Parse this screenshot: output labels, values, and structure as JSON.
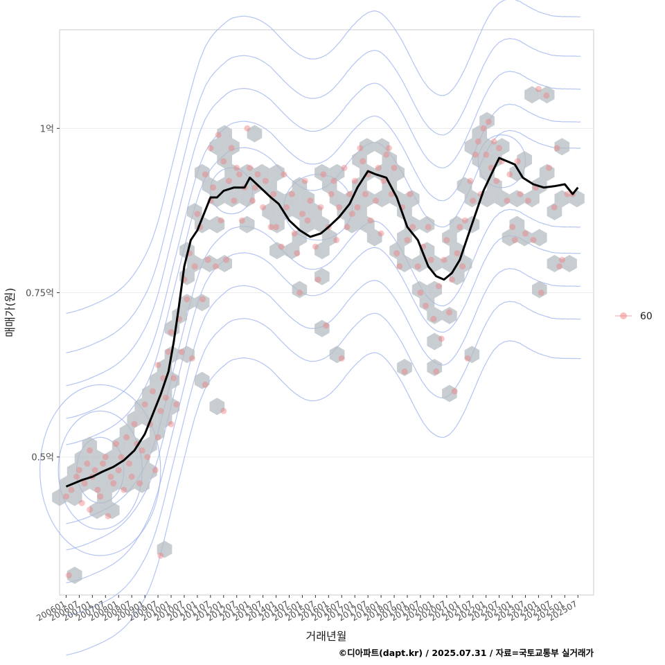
{
  "chart_data": {
    "type": "scatter",
    "title": "",
    "xlabel": "거래년월",
    "ylabel": "매매가(원)",
    "caption": "©디아파트(dapt.kr) / 2025.07.31 / 자료=국토교통부 실거래가",
    "y_unit": "억원",
    "ylim": [
      0.29,
      1.15
    ],
    "xlim": [
      2005.75,
      2026.1
    ],
    "y_ticks": [
      {
        "value": 0.5,
        "label": "0.5억"
      },
      {
        "value": 0.75,
        "label": "0.75억"
      },
      {
        "value": 1.0,
        "label": "1억"
      }
    ],
    "x_ticks": [
      "200601",
      "200607",
      "200701",
      "200707",
      "200801",
      "200807",
      "200901",
      "200907",
      "201001",
      "201007",
      "201101",
      "201107",
      "201201",
      "201207",
      "201301",
      "201307",
      "201401",
      "201407",
      "201501",
      "201507",
      "201601",
      "201607",
      "201701",
      "201707",
      "201801",
      "201807",
      "201901",
      "201907",
      "202001",
      "202007",
      "202101",
      "202107",
      "202201",
      "202207",
      "202301",
      "202307",
      "202401",
      "202407",
      "202501",
      "202507"
    ],
    "legend": {
      "position": "right",
      "entries": [
        {
          "label": "60",
          "color": "#f08080"
        }
      ]
    },
    "colors": {
      "points": "#f08080",
      "hex": "#b4bcc2",
      "contour": "#9bb0ee",
      "trend": "#000000",
      "panel_border": "#cccccc",
      "grid": "#ebebeb"
    },
    "trend_line": {
      "name": "moving average",
      "x": [
        2006.0,
        2006.3,
        2006.6,
        2007.0,
        2007.4,
        2007.8,
        2008.2,
        2008.6,
        2009.0,
        2009.3,
        2009.6,
        2009.9,
        2010.1,
        2010.3,
        2010.5,
        2010.75,
        2011.0,
        2011.25,
        2011.5,
        2011.75,
        2012.0,
        2012.4,
        2012.8,
        2013.0,
        2013.4,
        2013.8,
        2014.1,
        2014.5,
        2014.9,
        2015.3,
        2015.7,
        2016.0,
        2016.4,
        2016.8,
        2017.1,
        2017.5,
        2017.8,
        2018.2,
        2018.6,
        2019.0,
        2019.4,
        2019.8,
        2020.1,
        2020.4,
        2020.7,
        2021.0,
        2021.3,
        2021.6,
        2021.9,
        2022.2,
        2022.5,
        2022.8,
        2023.1,
        2023.4,
        2023.8,
        2024.2,
        2024.6,
        2025.0,
        2025.3,
        2025.5
      ],
      "y": [
        0.455,
        0.46,
        0.465,
        0.47,
        0.478,
        0.485,
        0.495,
        0.51,
        0.535,
        0.565,
        0.595,
        0.63,
        0.675,
        0.73,
        0.79,
        0.83,
        0.845,
        0.87,
        0.895,
        0.895,
        0.905,
        0.91,
        0.91,
        0.925,
        0.91,
        0.895,
        0.885,
        0.86,
        0.845,
        0.835,
        0.84,
        0.85,
        0.865,
        0.885,
        0.91,
        0.935,
        0.93,
        0.925,
        0.895,
        0.85,
        0.83,
        0.79,
        0.775,
        0.77,
        0.78,
        0.8,
        0.835,
        0.87,
        0.905,
        0.93,
        0.955,
        0.95,
        0.945,
        0.925,
        0.915,
        0.91,
        0.912,
        0.915,
        0.9,
        0.91
      ]
    },
    "series": [
      {
        "name": "60",
        "points": [
          [
            2006.0,
            0.44
          ],
          [
            2006.1,
            0.32
          ],
          [
            2006.2,
            0.45
          ],
          [
            2006.4,
            0.47
          ],
          [
            2006.5,
            0.48
          ],
          [
            2006.6,
            0.43
          ],
          [
            2006.7,
            0.46
          ],
          [
            2006.8,
            0.49
          ],
          [
            2006.9,
            0.51
          ],
          [
            2006.9,
            0.42
          ],
          [
            2007.0,
            0.47
          ],
          [
            2007.1,
            0.48
          ],
          [
            2007.2,
            0.45
          ],
          [
            2007.3,
            0.44
          ],
          [
            2007.4,
            0.49
          ],
          [
            2007.5,
            0.5
          ],
          [
            2007.6,
            0.41
          ],
          [
            2007.7,
            0.47
          ],
          [
            2007.8,
            0.46
          ],
          [
            2007.9,
            0.52
          ],
          [
            2008.0,
            0.48
          ],
          [
            2008.1,
            0.5
          ],
          [
            2008.2,
            0.45
          ],
          [
            2008.3,
            0.53
          ],
          [
            2008.4,
            0.49
          ],
          [
            2008.5,
            0.47
          ],
          [
            2008.6,
            0.55
          ],
          [
            2008.7,
            0.52
          ],
          [
            2008.8,
            0.46
          ],
          [
            2008.9,
            0.51
          ],
          [
            2009.0,
            0.58
          ],
          [
            2009.1,
            0.5
          ],
          [
            2009.2,
            0.55
          ],
          [
            2009.3,
            0.6
          ],
          [
            2009.4,
            0.48
          ],
          [
            2009.5,
            0.53
          ],
          [
            2009.5,
            0.64
          ],
          [
            2009.6,
            0.57
          ],
          [
            2009.6,
            0.35
          ],
          [
            2009.7,
            0.62
          ],
          [
            2009.8,
            0.59
          ],
          [
            2009.9,
            0.66
          ],
          [
            2010.0,
            0.55
          ],
          [
            2010.0,
            0.69
          ],
          [
            2010.1,
            0.62
          ],
          [
            2010.2,
            0.58
          ],
          [
            2010.3,
            0.71
          ],
          [
            2010.4,
            0.66
          ],
          [
            2010.5,
            0.77
          ],
          [
            2010.6,
            0.74
          ],
          [
            2010.7,
            0.81
          ],
          [
            2010.8,
            0.65
          ],
          [
            2010.9,
            0.79
          ],
          [
            2011.0,
            0.87
          ],
          [
            2011.1,
            0.85
          ],
          [
            2011.2,
            0.74
          ],
          [
            2011.3,
            0.61
          ],
          [
            2011.3,
            0.93
          ],
          [
            2011.4,
            0.8
          ],
          [
            2011.5,
            0.89
          ],
          [
            2011.5,
            0.97
          ],
          [
            2011.6,
            0.91
          ],
          [
            2011.7,
            0.79
          ],
          [
            2011.8,
            0.99
          ],
          [
            2011.9,
            0.86
          ],
          [
            2012.0,
            0.95
          ],
          [
            2012.0,
            0.57
          ],
          [
            2012.1,
            0.8
          ],
          [
            2012.2,
            0.92
          ],
          [
            2012.3,
            0.97
          ],
          [
            2012.4,
            0.89
          ],
          [
            2012.5,
            0.94
          ],
          [
            2012.6,
            0.93
          ],
          [
            2012.7,
            0.86
          ],
          [
            2012.8,
            0.91
          ],
          [
            2012.9,
            1.0
          ],
          [
            2013.0,
            0.94
          ],
          [
            2013.1,
            0.89
          ],
          [
            2013.2,
            0.91
          ],
          [
            2013.3,
            0.93
          ],
          [
            2013.5,
            0.88
          ],
          [
            2013.6,
            0.92
          ],
          [
            2013.8,
            0.85
          ],
          [
            2013.9,
            0.9
          ],
          [
            2014.0,
            0.85
          ],
          [
            2014.2,
            0.82
          ],
          [
            2014.3,
            0.93
          ],
          [
            2014.4,
            0.88
          ],
          [
            2014.6,
            0.9
          ],
          [
            2014.7,
            0.84
          ],
          [
            2014.8,
            0.81
          ],
          [
            2014.9,
            0.75
          ],
          [
            2015.0,
            0.87
          ],
          [
            2015.1,
            0.92
          ],
          [
            2015.2,
            0.86
          ],
          [
            2015.3,
            0.89
          ],
          [
            2015.5,
            0.82
          ],
          [
            2015.6,
            0.77
          ],
          [
            2015.7,
            0.88
          ],
          [
            2015.8,
            0.93
          ],
          [
            2015.9,
            0.7
          ],
          [
            2016.0,
            0.85
          ],
          [
            2016.1,
            0.9
          ],
          [
            2016.2,
            0.92
          ],
          [
            2016.3,
            0.83
          ],
          [
            2016.4,
            0.88
          ],
          [
            2016.5,
            0.65
          ],
          [
            2016.6,
            0.94
          ],
          [
            2016.7,
            0.85
          ],
          [
            2016.8,
            0.9
          ],
          [
            2016.9,
            0.87
          ],
          [
            2017.0,
            0.92
          ],
          [
            2017.1,
            0.88
          ],
          [
            2017.2,
            0.97
          ],
          [
            2017.3,
            0.95
          ],
          [
            2017.4,
            0.9
          ],
          [
            2017.5,
            0.93
          ],
          [
            2017.6,
            0.86
          ],
          [
            2017.8,
            0.89
          ],
          [
            2017.9,
            0.94
          ],
          [
            2018.0,
            0.84
          ],
          [
            2018.1,
            0.92
          ],
          [
            2018.2,
            0.96
          ],
          [
            2018.3,
            0.97
          ],
          [
            2018.4,
            0.9
          ],
          [
            2018.5,
            0.94
          ],
          [
            2018.6,
            0.81
          ],
          [
            2018.7,
            0.79
          ],
          [
            2018.8,
            0.88
          ],
          [
            2018.9,
            0.63
          ],
          [
            2019.0,
            0.83
          ],
          [
            2019.1,
            0.9
          ],
          [
            2019.2,
            0.85
          ],
          [
            2019.4,
            0.79
          ],
          [
            2019.5,
            0.75
          ],
          [
            2019.6,
            0.82
          ],
          [
            2019.7,
            0.73
          ],
          [
            2019.8,
            0.85
          ],
          [
            2019.9,
            0.8
          ],
          [
            2020.0,
            0.71
          ],
          [
            2020.1,
            0.63
          ],
          [
            2020.2,
            0.76
          ],
          [
            2020.3,
            0.68
          ],
          [
            2020.4,
            0.8
          ],
          [
            2020.5,
            0.83
          ],
          [
            2020.6,
            0.72
          ],
          [
            2020.7,
            0.77
          ],
          [
            2020.8,
            0.6
          ],
          [
            2020.9,
            0.81
          ],
          [
            2021.0,
            0.85
          ],
          [
            2021.1,
            0.79
          ],
          [
            2021.2,
            0.86
          ],
          [
            2021.3,
            0.65
          ],
          [
            2021.4,
            0.92
          ],
          [
            2021.5,
            0.89
          ],
          [
            2021.6,
            0.96
          ],
          [
            2021.7,
            0.98
          ],
          [
            2021.8,
            0.9
          ],
          [
            2021.9,
            1.0
          ],
          [
            2022.0,
            0.96
          ],
          [
            2022.1,
            1.01
          ],
          [
            2022.2,
            0.94
          ],
          [
            2022.3,
            0.98
          ],
          [
            2022.4,
            0.92
          ],
          [
            2022.5,
            0.97
          ],
          [
            2022.6,
            0.95
          ],
          [
            2022.8,
            0.89
          ],
          [
            2022.9,
            0.93
          ],
          [
            2023.0,
            0.85
          ],
          [
            2023.1,
            0.83
          ],
          [
            2023.2,
            0.95
          ],
          [
            2023.3,
            0.9
          ],
          [
            2023.5,
            0.84
          ],
          [
            2023.6,
            0.89
          ],
          [
            2023.8,
            0.83
          ],
          [
            2023.9,
            0.91
          ],
          [
            2024.0,
            1.06
          ],
          [
            2024.1,
            0.75
          ],
          [
            2024.3,
            1.05
          ],
          [
            2024.4,
            0.94
          ],
          [
            2024.6,
            0.88
          ],
          [
            2024.7,
            0.97
          ],
          [
            2024.8,
            0.79
          ],
          [
            2024.9,
            0.8
          ],
          [
            2025.1,
            0.9
          ],
          [
            2025.3,
            0.9
          ]
        ]
      }
    ]
  }
}
